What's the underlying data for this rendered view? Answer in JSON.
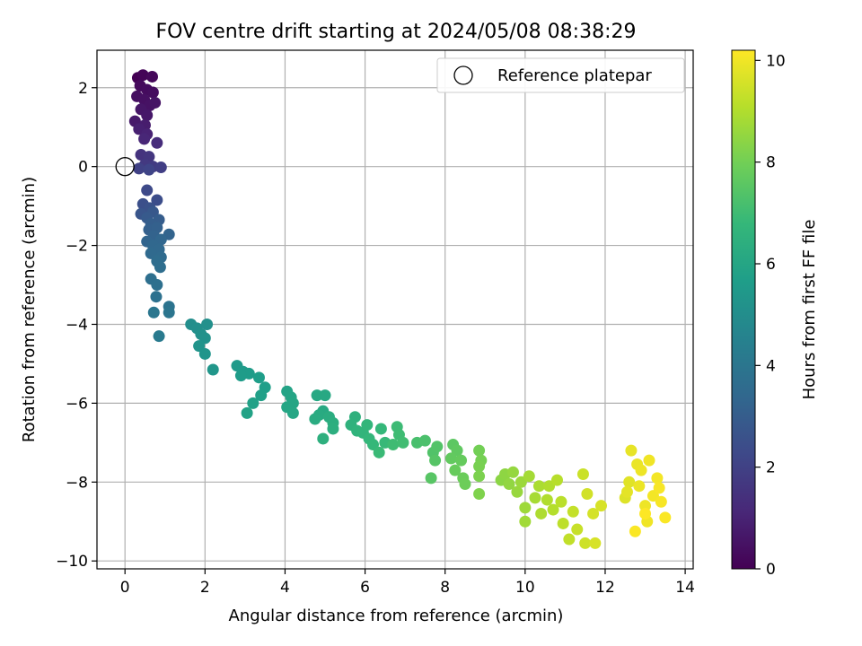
{
  "chart_data": {
    "type": "scatter",
    "title": "FOV centre drift starting at 2024/05/08 08:38:29",
    "xlabel": "Angular distance from reference (arcmin)",
    "ylabel": "Rotation from reference (arcmin)",
    "xlim": [
      -0.7,
      14.2
    ],
    "ylim": [
      -10.2,
      2.95
    ],
    "x_ticks": [
      0,
      2,
      4,
      6,
      8,
      10,
      12,
      14
    ],
    "x_tick_labels": [
      "0",
      "2",
      "4",
      "6",
      "8",
      "10",
      "12",
      "14"
    ],
    "y_ticks": [
      2,
      0,
      -2,
      -4,
      -6,
      -8,
      -10
    ],
    "y_tick_labels": [
      "2",
      "0",
      "−2",
      "−4",
      "−6",
      "−8",
      "−10"
    ],
    "grid": true,
    "legend": {
      "position": "upper-right",
      "entries": [
        "Reference platepar"
      ]
    },
    "reference_point": {
      "x": 0,
      "y": 0
    },
    "colorbar": {
      "label": "Hours from first FF file",
      "range": [
        0,
        10.2
      ],
      "ticks": [
        0,
        2,
        4,
        6,
        8,
        10
      ],
      "tick_labels": [
        "0",
        "2",
        "4",
        "6",
        "8",
        "10"
      ],
      "colormap": "viridis"
    },
    "colors": {
      "viridis": [
        "#440154",
        "#482878",
        "#3e4989",
        "#31688e",
        "#26828e",
        "#1f9e89",
        "#35b779",
        "#6ece58",
        "#b5de2b",
        "#fde725"
      ],
      "grid": "#b0b0b0"
    },
    "points": [
      [
        0.32,
        2.25,
        0.0
      ],
      [
        0.45,
        2.32,
        0.1
      ],
      [
        0.68,
        2.28,
        0.2
      ],
      [
        0.38,
        2.05,
        0.25
      ],
      [
        0.55,
        1.95,
        0.3
      ],
      [
        0.7,
        1.88,
        0.35
      ],
      [
        0.3,
        1.78,
        0.4
      ],
      [
        0.48,
        1.7,
        0.45
      ],
      [
        0.62,
        1.55,
        0.5
      ],
      [
        0.75,
        1.62,
        0.55
      ],
      [
        0.4,
        1.45,
        0.6
      ],
      [
        0.55,
        1.3,
        0.65
      ],
      [
        0.25,
        1.15,
        0.7
      ],
      [
        0.5,
        1.05,
        0.8
      ],
      [
        0.35,
        0.95,
        0.9
      ],
      [
        0.55,
        0.82,
        1.0
      ],
      [
        0.48,
        0.7,
        1.1
      ],
      [
        0.8,
        0.6,
        1.3
      ],
      [
        0.4,
        0.3,
        1.5
      ],
      [
        0.6,
        0.25,
        1.6
      ],
      [
        0.5,
        0.05,
        1.7
      ],
      [
        0.7,
        0.0,
        1.8
      ],
      [
        0.9,
        -0.02,
        1.9
      ],
      [
        0.35,
        -0.05,
        2.0
      ],
      [
        0.6,
        -0.08,
        2.1
      ],
      [
        0.55,
        -0.6,
        2.3
      ],
      [
        0.8,
        -0.85,
        2.4
      ],
      [
        0.45,
        -0.95,
        2.5
      ],
      [
        0.62,
        -1.05,
        2.6
      ],
      [
        0.4,
        -1.2,
        2.7
      ],
      [
        0.7,
        -1.15,
        2.8
      ],
      [
        0.55,
        -1.3,
        2.9
      ],
      [
        0.85,
        -1.35,
        3.0
      ],
      [
        0.65,
        -1.45,
        3.05
      ],
      [
        0.6,
        -1.6,
        3.1
      ],
      [
        0.8,
        -1.55,
        3.15
      ],
      [
        0.72,
        -1.75,
        3.2
      ],
      [
        1.1,
        -1.72,
        3.25
      ],
      [
        0.55,
        -1.9,
        3.3
      ],
      [
        0.9,
        -1.85,
        3.35
      ],
      [
        0.7,
        -2.0,
        3.4
      ],
      [
        0.85,
        -2.1,
        3.45
      ],
      [
        0.65,
        -2.2,
        3.5
      ],
      [
        0.9,
        -2.3,
        3.55
      ],
      [
        0.8,
        -2.4,
        3.6
      ],
      [
        0.88,
        -2.55,
        3.65
      ],
      [
        0.65,
        -2.85,
        3.7
      ],
      [
        0.8,
        -3.0,
        3.75
      ],
      [
        0.78,
        -3.3,
        3.8
      ],
      [
        1.1,
        -3.55,
        3.9
      ],
      [
        1.1,
        -3.7,
        3.95
      ],
      [
        0.72,
        -3.7,
        4.0
      ],
      [
        0.85,
        -4.3,
        4.2
      ],
      [
        1.65,
        -4.0,
        5.0
      ],
      [
        1.8,
        -4.1,
        5.05
      ],
      [
        2.05,
        -4.0,
        5.1
      ],
      [
        1.9,
        -4.25,
        5.15
      ],
      [
        2.0,
        -4.35,
        5.2
      ],
      [
        1.85,
        -4.55,
        5.25
      ],
      [
        2.0,
        -4.75,
        5.3
      ],
      [
        2.2,
        -5.15,
        5.35
      ],
      [
        2.8,
        -5.05,
        5.5
      ],
      [
        2.95,
        -5.2,
        5.55
      ],
      [
        3.1,
        -5.25,
        5.6
      ],
      [
        2.9,
        -5.3,
        5.6
      ],
      [
        3.35,
        -5.35,
        5.65
      ],
      [
        3.5,
        -5.6,
        5.7
      ],
      [
        3.4,
        -5.8,
        5.75
      ],
      [
        3.2,
        -6.0,
        5.8
      ],
      [
        3.05,
        -6.25,
        5.85
      ],
      [
        4.05,
        -5.7,
        5.9
      ],
      [
        4.15,
        -5.85,
        5.95
      ],
      [
        4.2,
        -6.0,
        6.0
      ],
      [
        4.05,
        -6.1,
        6.0
      ],
      [
        4.2,
        -6.25,
        6.05
      ],
      [
        4.8,
        -5.8,
        6.1
      ],
      [
        5.0,
        -5.8,
        6.1
      ],
      [
        4.95,
        -6.2,
        6.15
      ],
      [
        4.85,
        -6.3,
        6.2
      ],
      [
        4.75,
        -6.4,
        6.25
      ],
      [
        5.1,
        -6.35,
        6.3
      ],
      [
        5.2,
        -6.5,
        6.35
      ],
      [
        5.2,
        -6.65,
        6.4
      ],
      [
        4.95,
        -6.9,
        6.45
      ],
      [
        5.75,
        -6.35,
        6.5
      ],
      [
        5.65,
        -6.55,
        6.55
      ],
      [
        5.8,
        -6.7,
        6.6
      ],
      [
        5.95,
        -6.75,
        6.65
      ],
      [
        6.05,
        -6.55,
        6.7
      ],
      [
        6.1,
        -6.9,
        6.75
      ],
      [
        6.2,
        -7.05,
        6.8
      ],
      [
        6.4,
        -6.65,
        6.8
      ],
      [
        6.5,
        -7.0,
        6.85
      ],
      [
        6.35,
        -7.25,
        6.9
      ],
      [
        6.8,
        -6.6,
        6.95
      ],
      [
        6.85,
        -6.8,
        7.0
      ],
      [
        6.7,
        -7.05,
        7.0
      ],
      [
        6.95,
        -7.0,
        7.05
      ],
      [
        7.3,
        -7.0,
        7.2
      ],
      [
        7.5,
        -6.95,
        7.25
      ],
      [
        7.7,
        -7.25,
        7.35
      ],
      [
        7.8,
        -7.1,
        7.4
      ],
      [
        7.75,
        -7.45,
        7.45
      ],
      [
        7.65,
        -7.9,
        7.5
      ],
      [
        8.2,
        -7.05,
        7.6
      ],
      [
        8.3,
        -7.2,
        7.65
      ],
      [
        8.15,
        -7.4,
        7.7
      ],
      [
        8.4,
        -7.45,
        7.75
      ],
      [
        8.25,
        -7.7,
        7.8
      ],
      [
        8.45,
        -7.9,
        7.85
      ],
      [
        8.5,
        -8.05,
        7.9
      ],
      [
        8.85,
        -7.2,
        8.0
      ],
      [
        8.9,
        -7.45,
        8.05
      ],
      [
        8.85,
        -7.6,
        8.1
      ],
      [
        8.85,
        -7.85,
        8.15
      ],
      [
        8.85,
        -8.3,
        8.2
      ],
      [
        9.4,
        -7.95,
        8.4
      ],
      [
        9.5,
        -7.8,
        8.45
      ],
      [
        9.6,
        -8.05,
        8.5
      ],
      [
        9.7,
        -7.75,
        8.55
      ],
      [
        9.8,
        -8.25,
        8.6
      ],
      [
        9.9,
        -8.0,
        8.65
      ],
      [
        10.0,
        -8.65,
        8.7
      ],
      [
        10.0,
        -9.0,
        8.75
      ],
      [
        10.1,
        -7.85,
        8.8
      ],
      [
        10.25,
        -8.4,
        8.85
      ],
      [
        10.35,
        -8.1,
        8.9
      ],
      [
        10.4,
        -8.8,
        8.95
      ],
      [
        10.55,
        -8.45,
        9.0
      ],
      [
        10.6,
        -8.1,
        9.0
      ],
      [
        10.7,
        -8.7,
        9.05
      ],
      [
        10.8,
        -7.95,
        9.1
      ],
      [
        10.9,
        -8.5,
        9.15
      ],
      [
        10.95,
        -9.05,
        9.2
      ],
      [
        11.1,
        -9.45,
        9.25
      ],
      [
        11.2,
        -8.75,
        9.3
      ],
      [
        11.3,
        -9.2,
        9.35
      ],
      [
        11.45,
        -7.8,
        9.4
      ],
      [
        11.5,
        -9.55,
        9.45
      ],
      [
        11.55,
        -8.3,
        9.5
      ],
      [
        11.7,
        -8.8,
        9.55
      ],
      [
        11.75,
        -9.55,
        9.6
      ],
      [
        11.9,
        -8.6,
        9.6
      ],
      [
        12.5,
        -8.4,
        9.7
      ],
      [
        12.6,
        -8.0,
        9.75
      ],
      [
        12.55,
        -8.25,
        9.8
      ],
      [
        12.65,
        -7.2,
        9.85
      ],
      [
        12.8,
        -7.55,
        9.9
      ],
      [
        12.85,
        -8.1,
        9.92
      ],
      [
        12.9,
        -7.7,
        9.95
      ],
      [
        13.0,
        -8.6,
        9.97
      ],
      [
        13.05,
        -9.0,
        10.0
      ],
      [
        13.1,
        -7.45,
        10.0
      ],
      [
        13.2,
        -8.35,
        10.05
      ],
      [
        13.3,
        -7.9,
        10.05
      ],
      [
        13.35,
        -8.15,
        10.1
      ],
      [
        13.4,
        -8.5,
        10.1
      ],
      [
        13.5,
        -8.9,
        10.15
      ],
      [
        12.75,
        -9.25,
        10.15
      ],
      [
        13.0,
        -8.8,
        10.2
      ]
    ]
  }
}
